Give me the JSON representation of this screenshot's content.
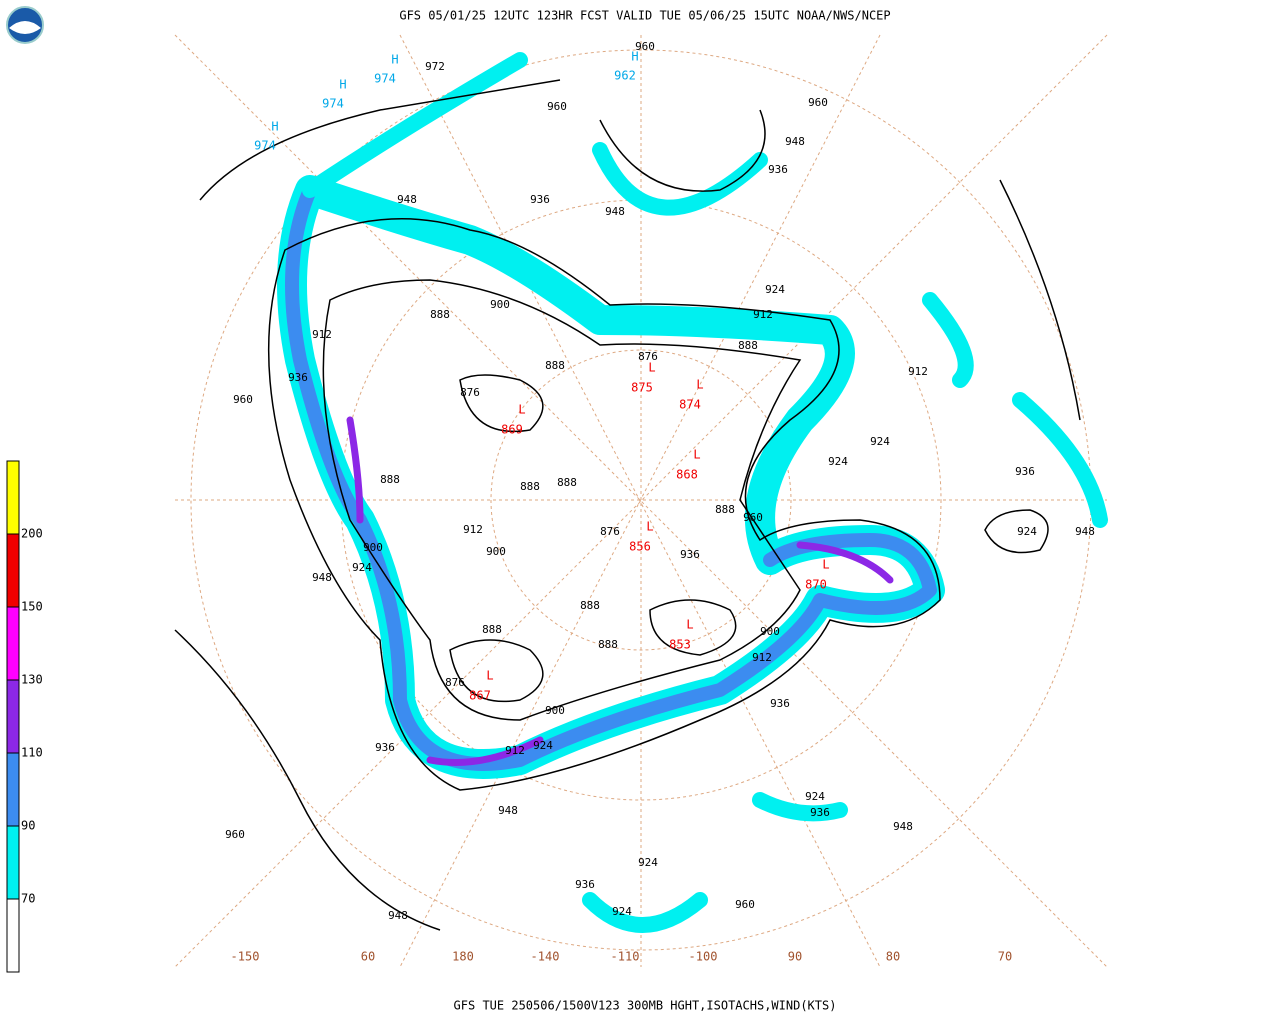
{
  "header": {
    "title": "GFS 05/01/25 12UTC 123HR FCST VALID TUE 05/06/25 15UTC NOAA/NWS/NCEP"
  },
  "footer": {
    "text": "GFS TUE 250506/1500V123 300MB HGHT,ISOTACHS,WIND(KTS)"
  },
  "colorbar": {
    "levels": [
      70,
      90,
      110,
      130,
      150,
      200
    ],
    "colors": [
      "#ffffff",
      "#00f0f0",
      "#3c8cf0",
      "#8c28e6",
      "#ff00ff",
      "#f00000",
      "#ffff00"
    ]
  },
  "contour_labels": [
    972,
    960,
    960,
    960,
    948,
    936,
    948,
    936,
    948,
    924,
    912,
    900,
    888,
    912,
    936,
    960,
    876,
    888,
    876,
    888,
    912,
    924,
    924,
    936,
    948,
    924,
    888,
    888,
    888,
    912,
    900,
    900,
    924,
    948,
    888,
    960,
    876,
    936,
    888,
    888,
    888,
    900,
    912,
    876,
    900,
    924,
    912,
    936,
    936,
    948,
    924,
    936,
    948,
    960,
    924,
    936,
    924,
    960,
    948
  ],
  "highs": [
    {
      "symbol": "H",
      "value": 974
    },
    {
      "symbol": "H",
      "value": 974
    },
    {
      "symbol": "H",
      "value": 974
    },
    {
      "symbol": "H",
      "value": 962
    }
  ],
  "lows": [
    {
      "symbol": "L",
      "value": 869
    },
    {
      "symbol": "L",
      "value": 875
    },
    {
      "symbol": "L",
      "value": 874
    },
    {
      "symbol": "L",
      "value": 868
    },
    {
      "symbol": "L",
      "value": 856
    },
    {
      "symbol": "L",
      "value": 870
    },
    {
      "symbol": "L",
      "value": 853
    },
    {
      "symbol": "L",
      "value": 867
    }
  ],
  "longitude_labels": [
    "-150",
    "60",
    "180",
    "-140",
    "-110",
    "-100",
    "90",
    "80",
    "70"
  ]
}
